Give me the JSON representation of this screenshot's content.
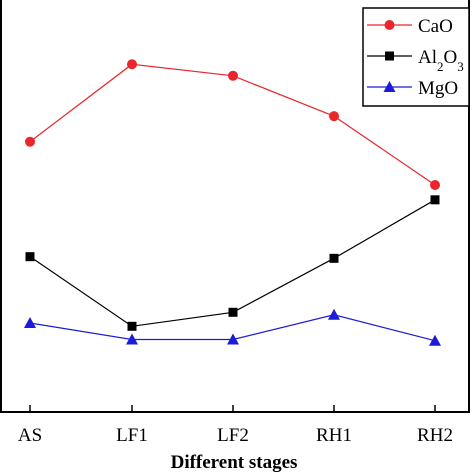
{
  "chart_data": {
    "type": "line",
    "title": "",
    "xlabel": "Different stages",
    "ylabel": "",
    "categories": [
      "AS",
      "LF1",
      "LF2",
      "RH1",
      "RH2"
    ],
    "ylim": [
      0,
      100
    ],
    "y_ticks_labeled": false,
    "grid": false,
    "legend": "top-right",
    "series": [
      {
        "name": "CaO",
        "legend_main": "CaO",
        "legend_subs": [],
        "color": "#e8262b",
        "marker": "circle",
        "values": [
          65.6,
          84.4,
          81.6,
          71.8,
          55.1
        ]
      },
      {
        "name": "Al2O3",
        "legend_main": "Al",
        "legend_subs": [
          "2",
          "O",
          "3"
        ],
        "color": "#000000",
        "marker": "square",
        "values": [
          37.7,
          20.8,
          24.2,
          37.3,
          51.5
        ]
      },
      {
        "name": "MgO",
        "legend_main": "MgO",
        "legend_subs": [],
        "color": "#1c1cd8",
        "marker": "triangle",
        "values": [
          21.6,
          17.6,
          17.6,
          23.6,
          17.3
        ]
      }
    ]
  }
}
